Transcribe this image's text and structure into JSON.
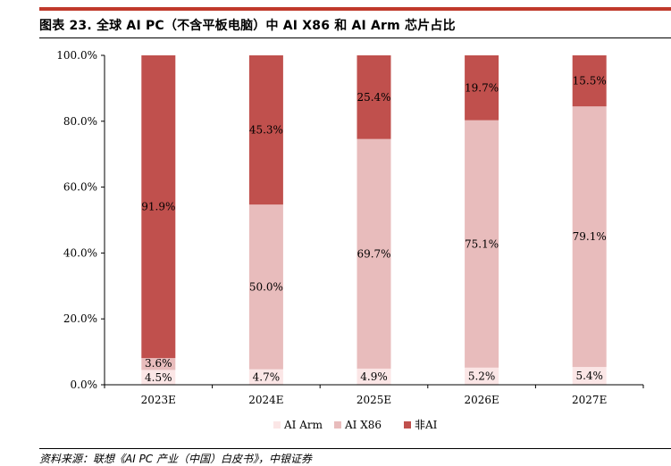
{
  "header": {
    "title": "图表 23. 全球 AI PC（不含平板电脑）中 AI X86 和 AI Arm 芯片占比"
  },
  "footer": {
    "source": "资料来源：联想《AI PC 产业（中国）白皮书》，中银证券"
  },
  "colors": {
    "accent": "#c0392b",
    "ai_arm": "#fbe6e6",
    "ai_x86": "#e8bcbc",
    "non_ai": "#c0504d"
  },
  "chart_data": {
    "type": "bar",
    "stacked": true,
    "categories": [
      "2023E",
      "2024E",
      "2025E",
      "2026E",
      "2027E"
    ],
    "series": [
      {
        "name": "AI Arm",
        "values": [
          4.5,
          4.7,
          4.9,
          5.2,
          5.4
        ],
        "labels": [
          "4.5%",
          "4.7%",
          "4.9%",
          "5.2%",
          "5.4%"
        ]
      },
      {
        "name": "AI X86",
        "values": [
          3.6,
          50.0,
          69.7,
          75.1,
          79.1
        ],
        "labels": [
          "3.6%",
          "50.0%",
          "69.7%",
          "75.1%",
          "79.1%"
        ]
      },
      {
        "name": "非AI",
        "values": [
          91.9,
          45.3,
          25.4,
          19.7,
          15.5
        ],
        "labels": [
          "91.9%",
          "45.3%",
          "25.4%",
          "19.7%",
          "15.5%"
        ]
      }
    ],
    "ylim": [
      0,
      100
    ],
    "yticks": [
      "0.0%",
      "20.0%",
      "40.0%",
      "60.0%",
      "80.0%",
      "100.0%"
    ],
    "grid": false,
    "legend_position": "bottom"
  }
}
